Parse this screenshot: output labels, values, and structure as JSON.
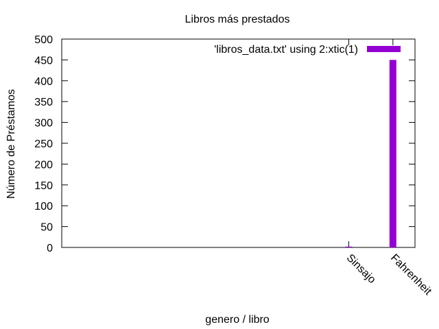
{
  "chart_data": {
    "type": "bar",
    "title": "Libros más prestados",
    "xlabel": "genero / libro",
    "ylabel": "Número de Préstamos",
    "ylim": [
      0,
      500
    ],
    "yticks": [
      0,
      50,
      100,
      150,
      200,
      250,
      300,
      350,
      400,
      450,
      500
    ],
    "categories": [
      "Sinsajo",
      "Fahrenheit"
    ],
    "x": [
      6,
      7
    ],
    "xlim": [
      -0.5,
      7.5
    ],
    "series": [
      {
        "name": "'libros_data.txt' using 2:xtic(1)",
        "values": [
          2,
          450
        ],
        "color": "#9400d3"
      }
    ],
    "legend": "top-right",
    "grid": false
  }
}
